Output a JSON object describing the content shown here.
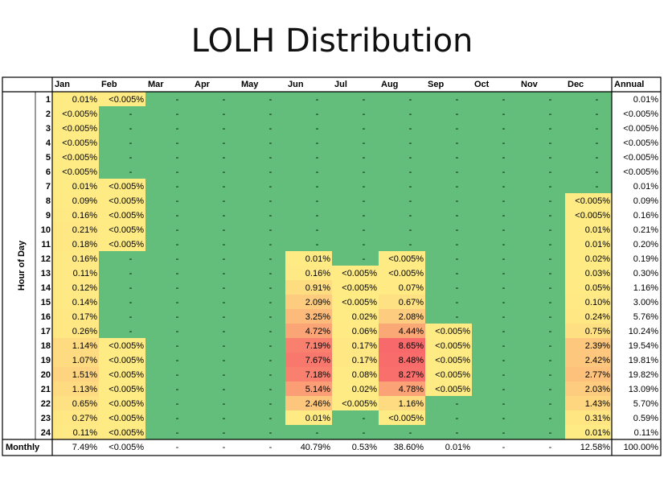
{
  "title": "LOLH Distribution",
  "chart_data": {
    "type": "heatmap",
    "title": "LOLH Distribution",
    "ylabel": "Hour of Day",
    "columns": [
      "Jan",
      "Feb",
      "Mar",
      "Apr",
      "May",
      "Jun",
      "Jul",
      "Aug",
      "Sep",
      "Oct",
      "Nov",
      "Dec"
    ],
    "annual_label": "Annual",
    "rows": [
      "1",
      "2",
      "3",
      "4",
      "5",
      "6",
      "7",
      "8",
      "9",
      "10",
      "11",
      "12",
      "13",
      "14",
      "15",
      "16",
      "17",
      "18",
      "19",
      "20",
      "21",
      "22",
      "23",
      "24"
    ],
    "values": [
      [
        "0.01%",
        "<0.005%",
        "-",
        "-",
        "-",
        "-",
        "-",
        "-",
        "-",
        "-",
        "-",
        "-"
      ],
      [
        "<0.005%",
        "-",
        "-",
        "-",
        "-",
        "-",
        "-",
        "-",
        "-",
        "-",
        "-",
        "-"
      ],
      [
        "<0.005%",
        "-",
        "-",
        "-",
        "-",
        "-",
        "-",
        "-",
        "-",
        "-",
        "-",
        "-"
      ],
      [
        "<0.005%",
        "-",
        "-",
        "-",
        "-",
        "-",
        "-",
        "-",
        "-",
        "-",
        "-",
        "-"
      ],
      [
        "<0.005%",
        "-",
        "-",
        "-",
        "-",
        "-",
        "-",
        "-",
        "-",
        "-",
        "-",
        "-"
      ],
      [
        "<0.005%",
        "-",
        "-",
        "-",
        "-",
        "-",
        "-",
        "-",
        "-",
        "-",
        "-",
        "-"
      ],
      [
        "0.01%",
        "<0.005%",
        "-",
        "-",
        "-",
        "-",
        "-",
        "-",
        "-",
        "-",
        "-",
        "-"
      ],
      [
        "0.09%",
        "<0.005%",
        "-",
        "-",
        "-",
        "-",
        "-",
        "-",
        "-",
        "-",
        "-",
        "<0.005%"
      ],
      [
        "0.16%",
        "<0.005%",
        "-",
        "-",
        "-",
        "-",
        "-",
        "-",
        "-",
        "-",
        "-",
        "<0.005%"
      ],
      [
        "0.21%",
        "<0.005%",
        "-",
        "-",
        "-",
        "-",
        "-",
        "-",
        "-",
        "-",
        "-",
        "0.01%"
      ],
      [
        "0.18%",
        "<0.005%",
        "-",
        "-",
        "-",
        "-",
        "-",
        "-",
        "-",
        "-",
        "-",
        "0.01%"
      ],
      [
        "0.16%",
        "-",
        "-",
        "-",
        "-",
        "0.01%",
        "-",
        "<0.005%",
        "-",
        "-",
        "-",
        "0.02%"
      ],
      [
        "0.11%",
        "-",
        "-",
        "-",
        "-",
        "0.16%",
        "<0.005%",
        "<0.005%",
        "-",
        "-",
        "-",
        "0.03%"
      ],
      [
        "0.12%",
        "-",
        "-",
        "-",
        "-",
        "0.91%",
        "<0.005%",
        "0.07%",
        "-",
        "-",
        "-",
        "0.05%"
      ],
      [
        "0.14%",
        "-",
        "-",
        "-",
        "-",
        "2.09%",
        "<0.005%",
        "0.67%",
        "-",
        "-",
        "-",
        "0.10%"
      ],
      [
        "0.17%",
        "-",
        "-",
        "-",
        "-",
        "3.25%",
        "0.02%",
        "2.08%",
        "-",
        "-",
        "-",
        "0.24%"
      ],
      [
        "0.26%",
        "-",
        "-",
        "-",
        "-",
        "4.72%",
        "0.06%",
        "4.44%",
        "<0.005%",
        "-",
        "-",
        "0.75%"
      ],
      [
        "1.14%",
        "<0.005%",
        "-",
        "-",
        "-",
        "7.19%",
        "0.17%",
        "8.65%",
        "<0.005%",
        "-",
        "-",
        "2.39%"
      ],
      [
        "1.07%",
        "<0.005%",
        "-",
        "-",
        "-",
        "7.67%",
        "0.17%",
        "8.48%",
        "<0.005%",
        "-",
        "-",
        "2.42%"
      ],
      [
        "1.51%",
        "<0.005%",
        "-",
        "-",
        "-",
        "7.18%",
        "0.08%",
        "8.27%",
        "<0.005%",
        "-",
        "-",
        "2.77%"
      ],
      [
        "1.13%",
        "<0.005%",
        "-",
        "-",
        "-",
        "5.14%",
        "0.02%",
        "4.78%",
        "<0.005%",
        "-",
        "-",
        "2.03%"
      ],
      [
        "0.65%",
        "<0.005%",
        "-",
        "-",
        "-",
        "2.46%",
        "<0.005%",
        "1.16%",
        "-",
        "-",
        "-",
        "1.43%"
      ],
      [
        "0.27%",
        "<0.005%",
        "-",
        "-",
        "-",
        "0.01%",
        "-",
        "<0.005%",
        "-",
        "-",
        "-",
        "0.31%"
      ],
      [
        "0.11%",
        "<0.005%",
        "-",
        "-",
        "-",
        "-",
        "-",
        "-",
        "-",
        "-",
        "-",
        "0.01%"
      ]
    ],
    "annual": [
      "0.01%",
      "<0.005%",
      "<0.005%",
      "<0.005%",
      "<0.005%",
      "<0.005%",
      "0.01%",
      "0.09%",
      "0.16%",
      "0.21%",
      "0.20%",
      "0.19%",
      "0.30%",
      "1.16%",
      "3.00%",
      "5.76%",
      "10.24%",
      "19.54%",
      "19.81%",
      "19.82%",
      "13.09%",
      "5.70%",
      "0.59%",
      "0.11%"
    ],
    "monthly_label": "Monthly",
    "monthly": [
      "7.49%",
      "<0.005%",
      "-",
      "-",
      "-",
      "40.79%",
      "0.53%",
      "38.60%",
      "0.01%",
      "-",
      "-",
      "12.58%"
    ],
    "monthly_annual": "100.00%",
    "colors": {
      "zero": "#63be7b",
      "low": "#ffeb84",
      "high": "#f8696b",
      "grid": "#000000"
    }
  }
}
